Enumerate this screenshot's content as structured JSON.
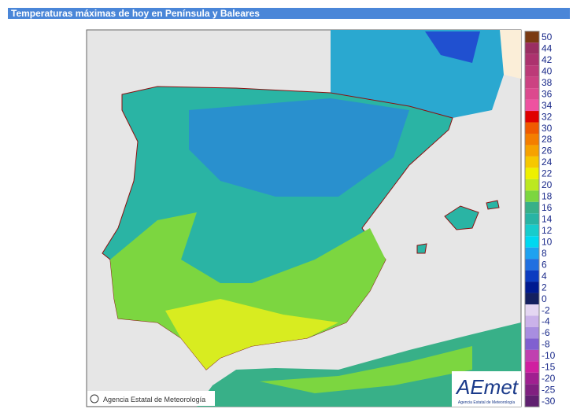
{
  "header": {
    "title": "Temperaturas máximas de hoy en Península y Baleares"
  },
  "legend": {
    "items": [
      {
        "label": 50,
        "color": "#7a3a12"
      },
      {
        "label": 44,
        "color": "#9a2e62"
      },
      {
        "label": 42,
        "color": "#ac326e"
      },
      {
        "label": 40,
        "color": "#bc3a78"
      },
      {
        "label": 38,
        "color": "#cc4282"
      },
      {
        "label": 36,
        "color": "#dc4a8e"
      },
      {
        "label": 34,
        "color": "#ee52a0"
      },
      {
        "label": 32,
        "color": "#e00000"
      },
      {
        "label": 30,
        "color": "#f05a00"
      },
      {
        "label": 28,
        "color": "#f47e00"
      },
      {
        "label": 26,
        "color": "#f6a200"
      },
      {
        "label": 24,
        "color": "#f6c800"
      },
      {
        "label": 22,
        "color": "#eef000"
      },
      {
        "label": 20,
        "color": "#bce820"
      },
      {
        "label": 18,
        "color": "#7cd640"
      },
      {
        "label": 16,
        "color": "#38b088"
      },
      {
        "label": 14,
        "color": "#28b4a4"
      },
      {
        "label": 12,
        "color": "#18cccc"
      },
      {
        "label": 10,
        "color": "#00d8f0"
      },
      {
        "label": 8,
        "color": "#1ea2f0"
      },
      {
        "label": 6,
        "color": "#2070e0"
      },
      {
        "label": 4,
        "color": "#0c3cc0"
      },
      {
        "label": 2,
        "color": "#001a90"
      },
      {
        "label": 0,
        "color": "#142060"
      },
      {
        "label": -2,
        "color": "#e4d6f2"
      },
      {
        "label": -4,
        "color": "#cab2ea"
      },
      {
        "label": -6,
        "color": "#a88ee0"
      },
      {
        "label": -8,
        "color": "#8060d0"
      },
      {
        "label": -10,
        "color": "#c040b0"
      },
      {
        "label": -15,
        "color": "#d020a0"
      },
      {
        "label": -20,
        "color": "#a02090"
      },
      {
        "label": -25,
        "color": "#802080"
      },
      {
        "label": -30,
        "color": "#602070"
      }
    ]
  },
  "credit": "Agencia Estatal de Meteorología",
  "logo": {
    "name": "AEmet",
    "subtitle": "Agencia Estatal de Meteorología"
  }
}
